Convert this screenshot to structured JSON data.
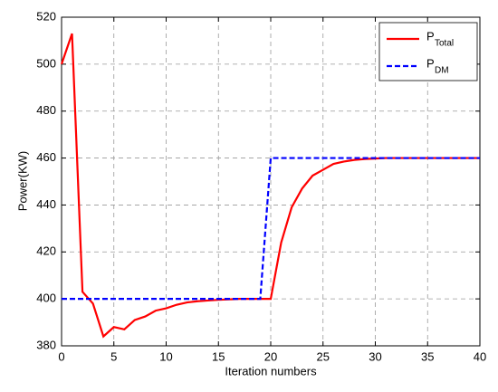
{
  "chart_data": {
    "type": "line",
    "xlabel": "Iteration numbers",
    "ylabel": "Power(KW)",
    "xlim": [
      0,
      40
    ],
    "xticks": [
      0,
      5,
      10,
      15,
      20,
      25,
      30,
      35,
      40
    ],
    "ylim": [
      380,
      520
    ],
    "yticks": [
      380,
      400,
      420,
      440,
      460,
      480,
      500,
      520
    ],
    "grid": true,
    "legend": "upper right",
    "series": [
      {
        "name": "P",
        "subscript": "Total",
        "color": "#ff0000",
        "dash": false,
        "x": [
          0,
          1,
          2,
          3,
          4,
          5,
          6,
          7,
          8,
          9,
          10,
          11,
          12,
          13,
          14,
          15,
          16,
          17,
          18,
          19,
          20,
          21,
          22,
          23,
          24,
          25,
          26,
          27,
          28,
          29,
          30,
          31,
          32,
          33,
          34,
          35,
          36,
          37,
          38,
          39,
          40
        ],
        "values": [
          500,
          513,
          403,
          398,
          384,
          388,
          387,
          391,
          392.5,
          395,
          396,
          397.5,
          398.5,
          399,
          399.3,
          399.6,
          399.8,
          400,
          400,
          400,
          400,
          424,
          439,
          447,
          452.5,
          455,
          457.5,
          458.5,
          459.2,
          459.6,
          459.8,
          460,
          460,
          460,
          460,
          460,
          460,
          460,
          460,
          460,
          460
        ]
      },
      {
        "name": "P",
        "subscript": "DM",
        "color": "#0000ff",
        "dash": true,
        "x": [
          0,
          19,
          20,
          40
        ],
        "values": [
          400,
          400,
          460,
          460
        ]
      }
    ]
  }
}
